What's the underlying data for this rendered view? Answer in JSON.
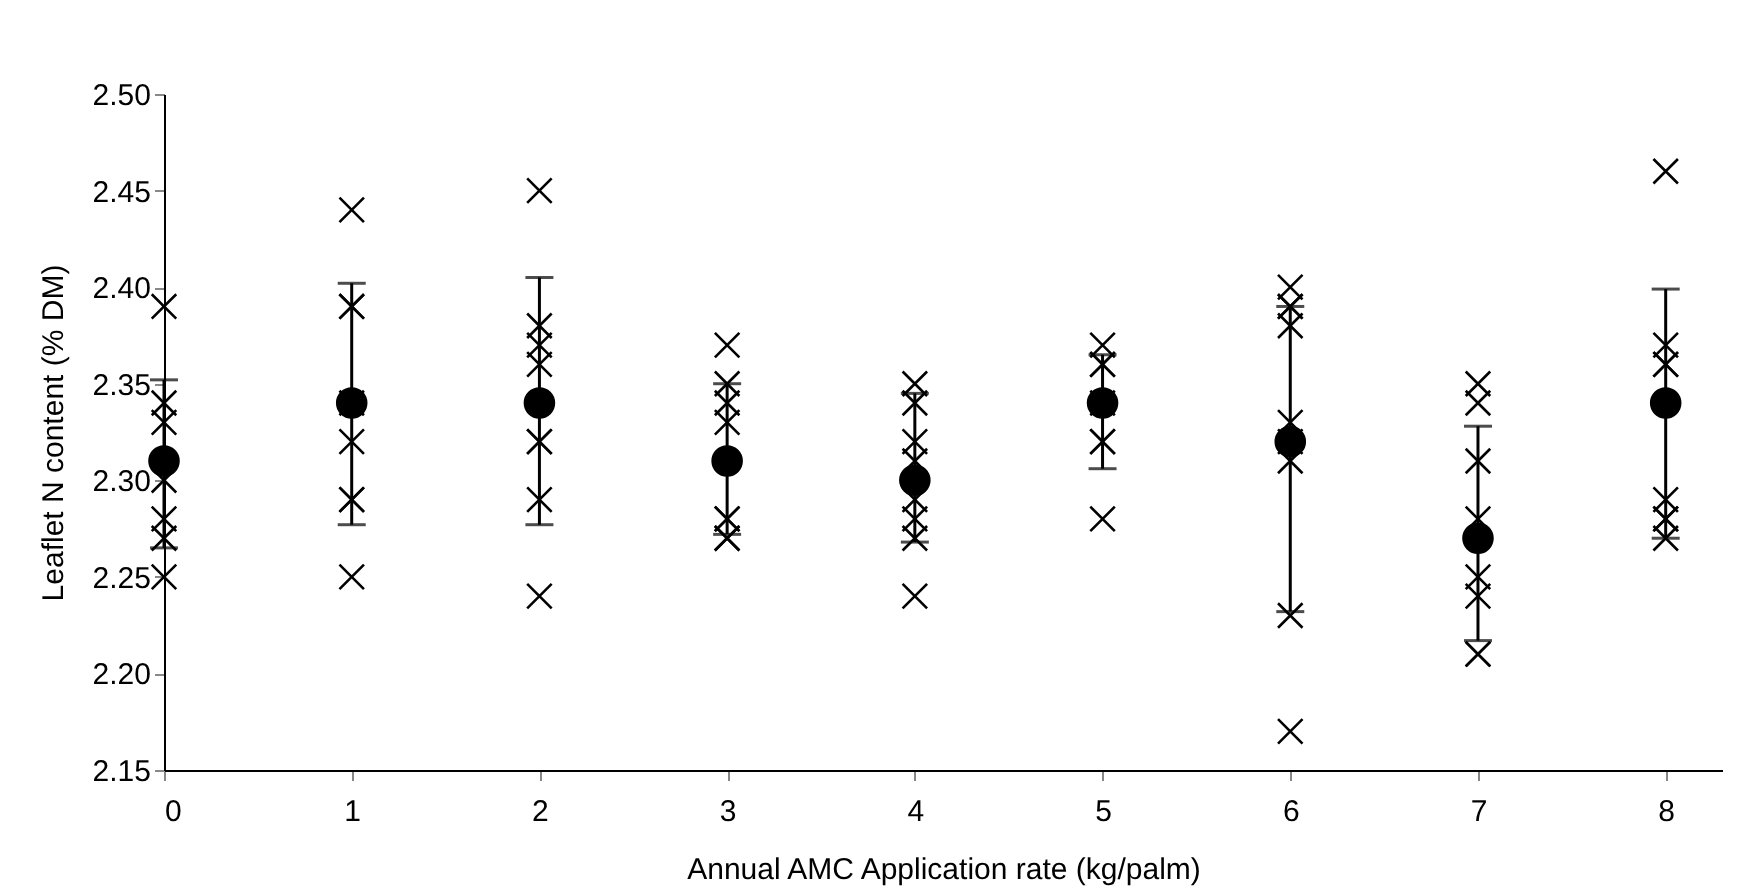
{
  "chart_data": {
    "type": "scatter",
    "xlabel": "Annual AMC Application rate (kg/palm)",
    "ylabel": "Leaflet N content (% DM)",
    "xlim": [
      0,
      8.3
    ],
    "xticks": [
      0,
      1,
      2,
      3,
      4,
      5,
      6,
      7,
      8
    ],
    "ylim": [
      2.15,
      2.5
    ],
    "yticks": [
      2.15,
      {
        "value": 2.2,
        "label": "2.20"
      },
      2.25,
      {
        "value": 2.3,
        "label": "2.30"
      },
      2.35,
      {
        "value": 2.4,
        "label": "2.40"
      },
      2.45,
      {
        "value": 2.5,
        "label": "2.50"
      }
    ],
    "grid": false,
    "series": [
      {
        "marker": "cross",
        "color": "#000000",
        "x": [
          0,
          0,
          0,
          0,
          0,
          0,
          0,
          1,
          1,
          1,
          1,
          1,
          1,
          1,
          1,
          2,
          2,
          2,
          2,
          2,
          2,
          2,
          2,
          3,
          3,
          3,
          3,
          3,
          3,
          3,
          3,
          4,
          4,
          4,
          4,
          4,
          4,
          4,
          4,
          5,
          5,
          5,
          5,
          5,
          5,
          5,
          6,
          6,
          6,
          6,
          6,
          6,
          6,
          6,
          6,
          7,
          7,
          7,
          7,
          7,
          7,
          7,
          7,
          8,
          8,
          8,
          8,
          8,
          8,
          8,
          8
        ],
        "values": [
          2.39,
          2.34,
          2.33,
          2.3,
          2.28,
          2.27,
          2.25,
          2.44,
          2.39,
          2.39,
          2.34,
          2.32,
          2.29,
          2.29,
          2.25,
          2.45,
          2.38,
          2.37,
          2.36,
          2.32,
          2.32,
          2.29,
          2.24,
          2.37,
          2.35,
          2.34,
          2.33,
          2.28,
          2.28,
          2.27,
          2.27,
          2.35,
          2.34,
          2.32,
          2.31,
          2.29,
          2.28,
          2.27,
          2.24,
          2.37,
          2.36,
          2.36,
          2.34,
          2.32,
          2.32,
          2.28,
          2.4,
          2.39,
          2.39,
          2.38,
          2.33,
          2.32,
          2.31,
          2.23,
          2.17,
          2.35,
          2.34,
          2.31,
          2.28,
          2.25,
          2.24,
          2.21,
          2.21,
          2.46,
          2.37,
          2.36,
          2.36,
          2.29,
          2.28,
          2.28,
          2.27
        ]
      },
      {
        "marker": "circle",
        "color": "#000000",
        "x": [
          0,
          1,
          2,
          3,
          4,
          5,
          6,
          7,
          8
        ],
        "values": [
          2.31,
          2.34,
          2.34,
          2.31,
          2.3,
          2.34,
          2.32,
          2.27,
          2.34
        ],
        "errors": [
          [
            2.265,
            2.352
          ],
          [
            2.277,
            2.402
          ],
          [
            2.277,
            2.405
          ],
          [
            2.272,
            2.35
          ],
          [
            2.268,
            2.345
          ],
          [
            2.306,
            2.365
          ],
          [
            2.232,
            2.39
          ],
          [
            2.217,
            2.328
          ],
          [
            2.27,
            2.399
          ]
        ]
      }
    ]
  }
}
